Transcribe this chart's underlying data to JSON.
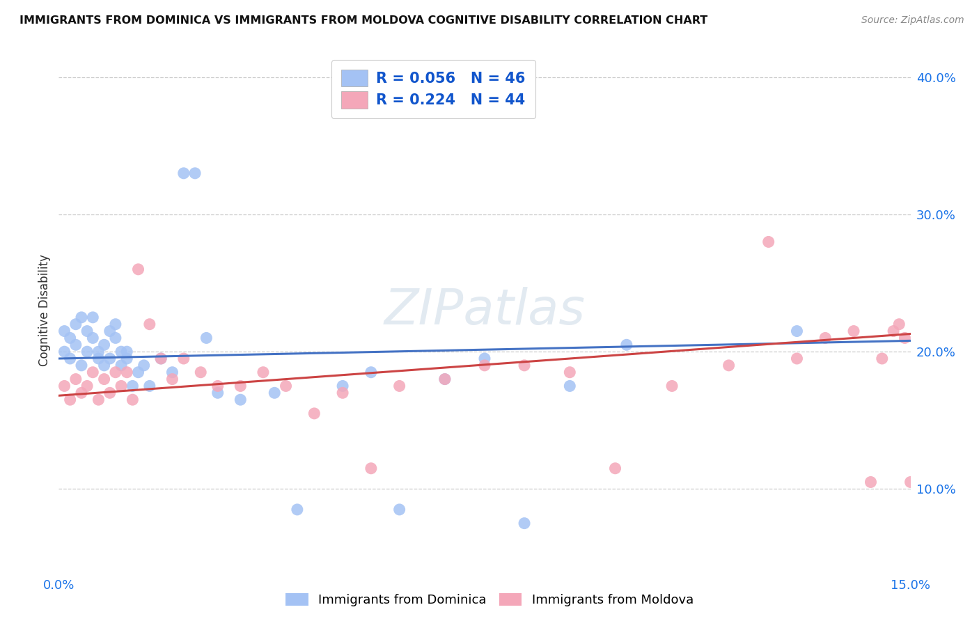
{
  "title": "IMMIGRANTS FROM DOMINICA VS IMMIGRANTS FROM MOLDOVA COGNITIVE DISABILITY CORRELATION CHART",
  "source": "Source: ZipAtlas.com",
  "ylabel": "Cognitive Disability",
  "xlim": [
    0.0,
    0.15
  ],
  "ylim": [
    0.04,
    0.42
  ],
  "xtick_vals": [
    0.0,
    0.03,
    0.06,
    0.09,
    0.12,
    0.15
  ],
  "xtick_labels": [
    "0.0%",
    "",
    "",
    "",
    "",
    "15.0%"
  ],
  "ytick_vals": [
    0.1,
    0.2,
    0.3,
    0.4
  ],
  "ytick_labels": [
    "10.0%",
    "20.0%",
    "30.0%",
    "40.0%"
  ],
  "series1_label": "Immigrants from Dominica",
  "series1_color": "#a4c2f4",
  "series1_line_color": "#4472c4",
  "series1_R": "0.056",
  "series1_N": "46",
  "series2_label": "Immigrants from Moldova",
  "series2_color": "#f4a7b9",
  "series2_line_color": "#cc4444",
  "series2_R": "0.224",
  "series2_N": "44",
  "legend_text_color": "#1155cc",
  "watermark": "ZIPatlas",
  "blue_x": [
    0.001,
    0.001,
    0.002,
    0.002,
    0.003,
    0.003,
    0.004,
    0.004,
    0.005,
    0.005,
    0.006,
    0.006,
    0.007,
    0.007,
    0.008,
    0.008,
    0.009,
    0.009,
    0.01,
    0.01,
    0.011,
    0.011,
    0.012,
    0.012,
    0.013,
    0.014,
    0.015,
    0.016,
    0.018,
    0.02,
    0.022,
    0.024,
    0.026,
    0.028,
    0.032,
    0.038,
    0.042,
    0.05,
    0.055,
    0.06,
    0.068,
    0.075,
    0.082,
    0.09,
    0.1,
    0.13
  ],
  "blue_y": [
    0.2,
    0.215,
    0.21,
    0.195,
    0.22,
    0.205,
    0.225,
    0.19,
    0.215,
    0.2,
    0.225,
    0.21,
    0.195,
    0.2,
    0.19,
    0.205,
    0.215,
    0.195,
    0.21,
    0.22,
    0.2,
    0.19,
    0.195,
    0.2,
    0.175,
    0.185,
    0.19,
    0.175,
    0.195,
    0.185,
    0.33,
    0.33,
    0.21,
    0.17,
    0.165,
    0.17,
    0.085,
    0.175,
    0.185,
    0.085,
    0.18,
    0.195,
    0.075,
    0.175,
    0.205,
    0.215
  ],
  "pink_x": [
    0.001,
    0.002,
    0.003,
    0.004,
    0.005,
    0.006,
    0.007,
    0.008,
    0.009,
    0.01,
    0.011,
    0.012,
    0.013,
    0.014,
    0.016,
    0.018,
    0.02,
    0.022,
    0.025,
    0.028,
    0.032,
    0.036,
    0.04,
    0.045,
    0.05,
    0.055,
    0.06,
    0.068,
    0.075,
    0.082,
    0.09,
    0.098,
    0.108,
    0.118,
    0.125,
    0.13,
    0.135,
    0.14,
    0.143,
    0.145,
    0.147,
    0.148,
    0.149,
    0.15
  ],
  "pink_y": [
    0.175,
    0.165,
    0.18,
    0.17,
    0.175,
    0.185,
    0.165,
    0.18,
    0.17,
    0.185,
    0.175,
    0.185,
    0.165,
    0.26,
    0.22,
    0.195,
    0.18,
    0.195,
    0.185,
    0.175,
    0.175,
    0.185,
    0.175,
    0.155,
    0.17,
    0.115,
    0.175,
    0.18,
    0.19,
    0.19,
    0.185,
    0.115,
    0.175,
    0.19,
    0.28,
    0.195,
    0.21,
    0.215,
    0.105,
    0.195,
    0.215,
    0.22,
    0.21,
    0.105
  ]
}
